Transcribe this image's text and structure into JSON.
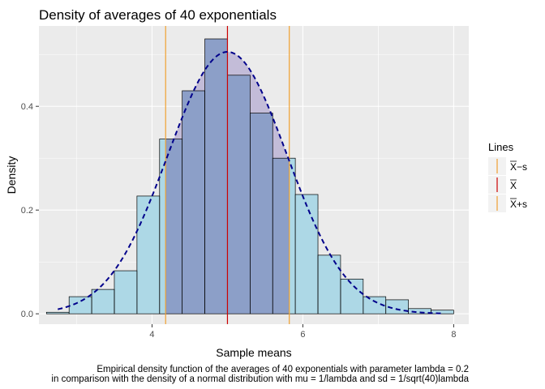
{
  "chart_data": {
    "type": "bar",
    "title": "Density of averages of 40 exponentials",
    "xlabel": "Sample means",
    "ylabel": "Density",
    "xlim": [
      2.5,
      8.2
    ],
    "ylim": [
      -0.02,
      0.555
    ],
    "x_ticks": [
      4,
      6,
      8
    ],
    "y_ticks": [
      0.0,
      0.2,
      0.4
    ],
    "x_tick_labels": [
      "4",
      "6",
      "8"
    ],
    "y_tick_labels": [
      "0.0",
      "0.2",
      "0.4"
    ],
    "grid": true,
    "bin_width": 0.3,
    "histogram": [
      {
        "x0": 2.6,
        "x1": 2.9,
        "density": 0.003
      },
      {
        "x0": 2.9,
        "x1": 3.2,
        "density": 0.033
      },
      {
        "x0": 3.2,
        "x1": 3.5,
        "density": 0.047
      },
      {
        "x0": 3.5,
        "x1": 3.8,
        "density": 0.083
      },
      {
        "x0": 3.8,
        "x1": 4.1,
        "density": 0.227
      },
      {
        "x0": 4.1,
        "x1": 4.4,
        "density": 0.337
      },
      {
        "x0": 4.4,
        "x1": 4.7,
        "density": 0.43
      },
      {
        "x0": 4.7,
        "x1": 5.0,
        "density": 0.53
      },
      {
        "x0": 5.0,
        "x1": 5.3,
        "density": 0.46
      },
      {
        "x0": 5.3,
        "x1": 5.6,
        "density": 0.387
      },
      {
        "x0": 5.6,
        "x1": 5.9,
        "density": 0.3
      },
      {
        "x0": 5.9,
        "x1": 6.2,
        "density": 0.23
      },
      {
        "x0": 6.2,
        "x1": 6.5,
        "density": 0.113
      },
      {
        "x0": 6.5,
        "x1": 6.8,
        "density": 0.067
      },
      {
        "x0": 6.8,
        "x1": 7.1,
        "density": 0.033
      },
      {
        "x0": 7.1,
        "x1": 7.4,
        "density": 0.027
      },
      {
        "x0": 7.4,
        "x1": 7.7,
        "density": 0.01
      },
      {
        "x0": 7.7,
        "x1": 8.0,
        "density": 0.007
      }
    ],
    "shaded_region": {
      "from": 4.18,
      "to": 5.82
    },
    "normal_curve": {
      "mean": 5.0,
      "sd": 0.79,
      "style": "dashed",
      "color": "#00008b"
    },
    "vertical_lines": [
      {
        "label_mark": "X",
        "label_suffix": "−s",
        "x": 4.18,
        "color": "#f0a030"
      },
      {
        "label_mark": "X",
        "label_suffix": "",
        "x": 5.0,
        "color": "#cc0000"
      },
      {
        "label_mark": "X",
        "label_suffix": "+s",
        "x": 5.82,
        "color": "#f0a030"
      }
    ],
    "legend": {
      "title": "Lines",
      "position": "right"
    },
    "caption_lines": [
      "Empirical density function of the averages of 40 exponentials with parameter lambda = 0.2",
      "in comparison with the density of a normal distribution with mu = 1/lambda and sd = 1/sqrt(40)lambda"
    ],
    "colors": {
      "panel_bg": "#ebebeb",
      "grid": "#ffffff",
      "bar_fill": "#add8e6",
      "bar_stroke": "#000000",
      "overlap_fill": "#8c9fc8",
      "curve_fill": "#c3bcd8"
    }
  }
}
